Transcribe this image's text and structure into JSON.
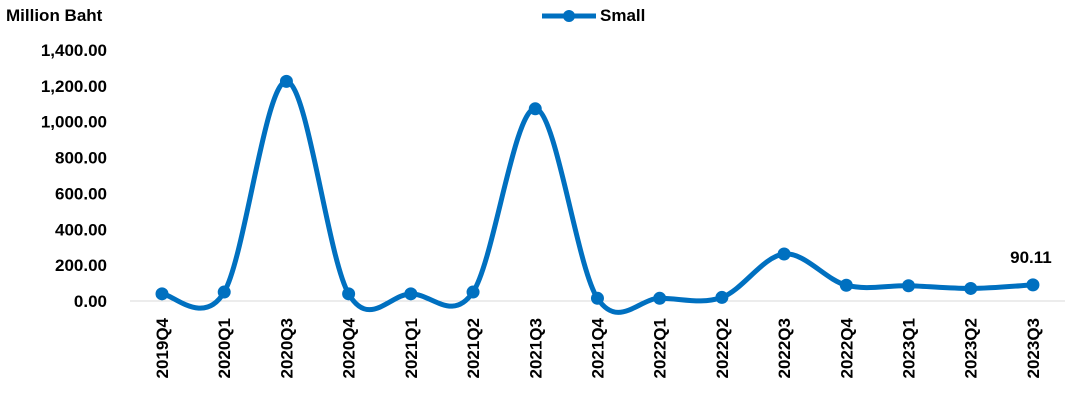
{
  "chart_data": {
    "type": "line",
    "title": "",
    "ylabel": "Million Baht",
    "xlabel": "",
    "categories": [
      "2019Q4",
      "2020Q1",
      "2020Q3",
      "2020Q4",
      "2021Q1",
      "2021Q2",
      "2021Q3",
      "2021Q4",
      "2022Q1",
      "2022Q2",
      "2022Q3",
      "2022Q4",
      "2023Q1",
      "2023Q2",
      "2023Q3"
    ],
    "series": [
      {
        "name": "Small",
        "values": [
          40,
          50,
          1225,
          40,
          40,
          50,
          1072,
          15,
          15,
          20,
          262,
          88,
          85,
          70,
          90.11
        ],
        "color": "#0070C0"
      }
    ],
    "ylim": [
      0,
      1400
    ],
    "yticks": [
      "0.00",
      "200.00",
      "400.00",
      "600.00",
      "800.00",
      "1,000.00",
      "1,200.00",
      "1,400.00"
    ],
    "data_labels": [
      {
        "index": 14,
        "text": "90.11"
      }
    ],
    "legend": "top-center",
    "grid": false,
    "smooth": true
  }
}
